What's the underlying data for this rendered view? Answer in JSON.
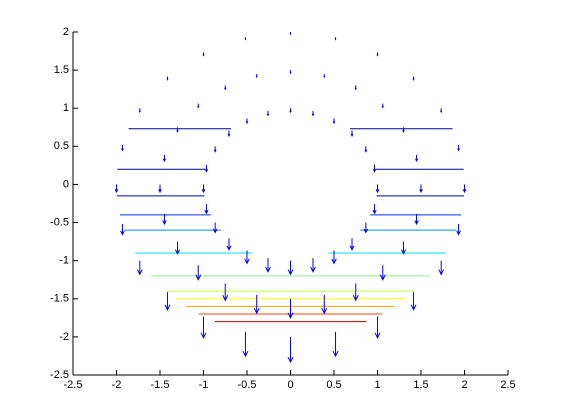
{
  "chart_data": {
    "type": "quiver",
    "xlim": [
      -2.5,
      2.5
    ],
    "ylim": [
      -2.5,
      2
    ],
    "xticks": [
      -2.5,
      -2,
      -1.5,
      -1,
      -0.5,
      0,
      0.5,
      1,
      1.5,
      2,
      2.5
    ],
    "yticks": [
      -2.5,
      -2,
      -1.5,
      -1,
      -0.5,
      0,
      0.5,
      1,
      1.5,
      2
    ],
    "color": "#0000ff",
    "radii": [
      1,
      1.5,
      2
    ],
    "angles": [
      0,
      15,
      30,
      45,
      60,
      75,
      90,
      105,
      120,
      135,
      150,
      165,
      180,
      195,
      210,
      225,
      240,
      255,
      270,
      285,
      300,
      315,
      330,
      345
    ],
    "v": [
      [
        -0.1,
        -0.09,
        -0.07,
        -0.07,
        -0.06,
        -0.06,
        -0.05,
        -0.06,
        -0.06,
        -0.07,
        -0.07,
        -0.09,
        -0.1,
        -0.12,
        -0.13,
        -0.15,
        -0.17,
        -0.18,
        -0.18,
        -0.18,
        -0.17,
        -0.15,
        -0.13,
        -0.12
      ],
      [
        -0.1,
        -0.08,
        -0.06,
        -0.05,
        -0.05,
        -0.04,
        -0.04,
        -0.04,
        -0.05,
        -0.05,
        -0.06,
        -0.08,
        -0.1,
        -0.13,
        -0.16,
        -0.19,
        -0.22,
        -0.24,
        -0.25,
        -0.24,
        -0.22,
        -0.19,
        -0.16,
        -0.13
      ],
      [
        -0.1,
        -0.07,
        -0.05,
        -0.04,
        -0.04,
        -0.03,
        -0.03,
        -0.03,
        -0.04,
        -0.04,
        -0.05,
        -0.07,
        -0.1,
        -0.14,
        -0.18,
        -0.23,
        -0.28,
        -0.32,
        -0.33,
        -0.32,
        -0.28,
        -0.23,
        -0.18,
        -0.14
      ]
    ],
    "contours": {
      "levels": [
        0.73,
        0.2,
        -0.15,
        -0.4,
        -0.6,
        -0.9,
        -1.2,
        -1.4,
        -1.5,
        -1.6,
        -1.7,
        -1.8
      ],
      "colors": [
        "#00008f",
        "#0000a0",
        "#0000c0",
        "#0030ff",
        "#0090ff",
        "#00e0ff",
        "#80ff80",
        "#c0ff40",
        "#ffff00",
        "#ffa000",
        "#ff4000",
        "#c00000"
      ]
    }
  }
}
